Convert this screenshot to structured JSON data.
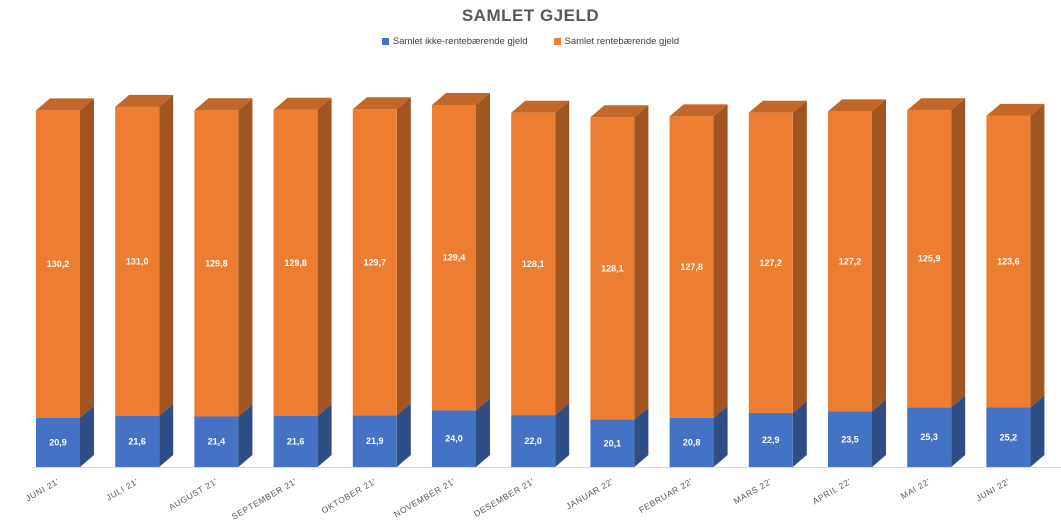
{
  "chart_data": {
    "type": "bar",
    "stacked": true,
    "three_d": true,
    "title": "SAMLET GJELD",
    "categories": [
      "JUNI 21'",
      "JULI 21'",
      "AUGUST 21'",
      "SEPTEMBER 21'",
      "OKTOBER 21'",
      "NOVEMBER 21'",
      "DESEMBER 21'",
      "JANUAR 22'",
      "FEBRUAR 22'",
      "MARS 22'",
      "APRIL 22'",
      "MAI 22'",
      "JUNI 22'"
    ],
    "series": [
      {
        "name": "Samlet ikke-rentebærende gjeld",
        "color": "#4472C4",
        "values": [
          20.9,
          21.6,
          21.4,
          21.6,
          21.9,
          24.0,
          22.0,
          20.1,
          20.8,
          22.9,
          23.5,
          25.3,
          25.2
        ],
        "labels": [
          "20,9",
          "21,6",
          "21,4",
          "21,6",
          "21,9",
          "24,0",
          "22,0",
          "20,1",
          "20,8",
          "22,9",
          "23,5",
          "25,3",
          "25,2"
        ]
      },
      {
        "name": "Samlet rentebærende gjeld",
        "color": "#ED7D31",
        "values": [
          130.2,
          131.0,
          129.8,
          129.8,
          129.7,
          129.4,
          128.1,
          128.1,
          127.8,
          127.2,
          127.2,
          125.9,
          123.6
        ],
        "labels": [
          "130,2",
          "131,0",
          "129,8",
          "129,8",
          "129,7",
          "129,4",
          "128,1",
          "128,1",
          "127,8",
          "127,2",
          "127,2",
          "125,9",
          "123,6"
        ]
      }
    ],
    "xlabel": "",
    "ylabel": "",
    "ylim": [
      0,
      153.4
    ],
    "grid": false,
    "legend_position": "top",
    "axis_visible": false
  }
}
